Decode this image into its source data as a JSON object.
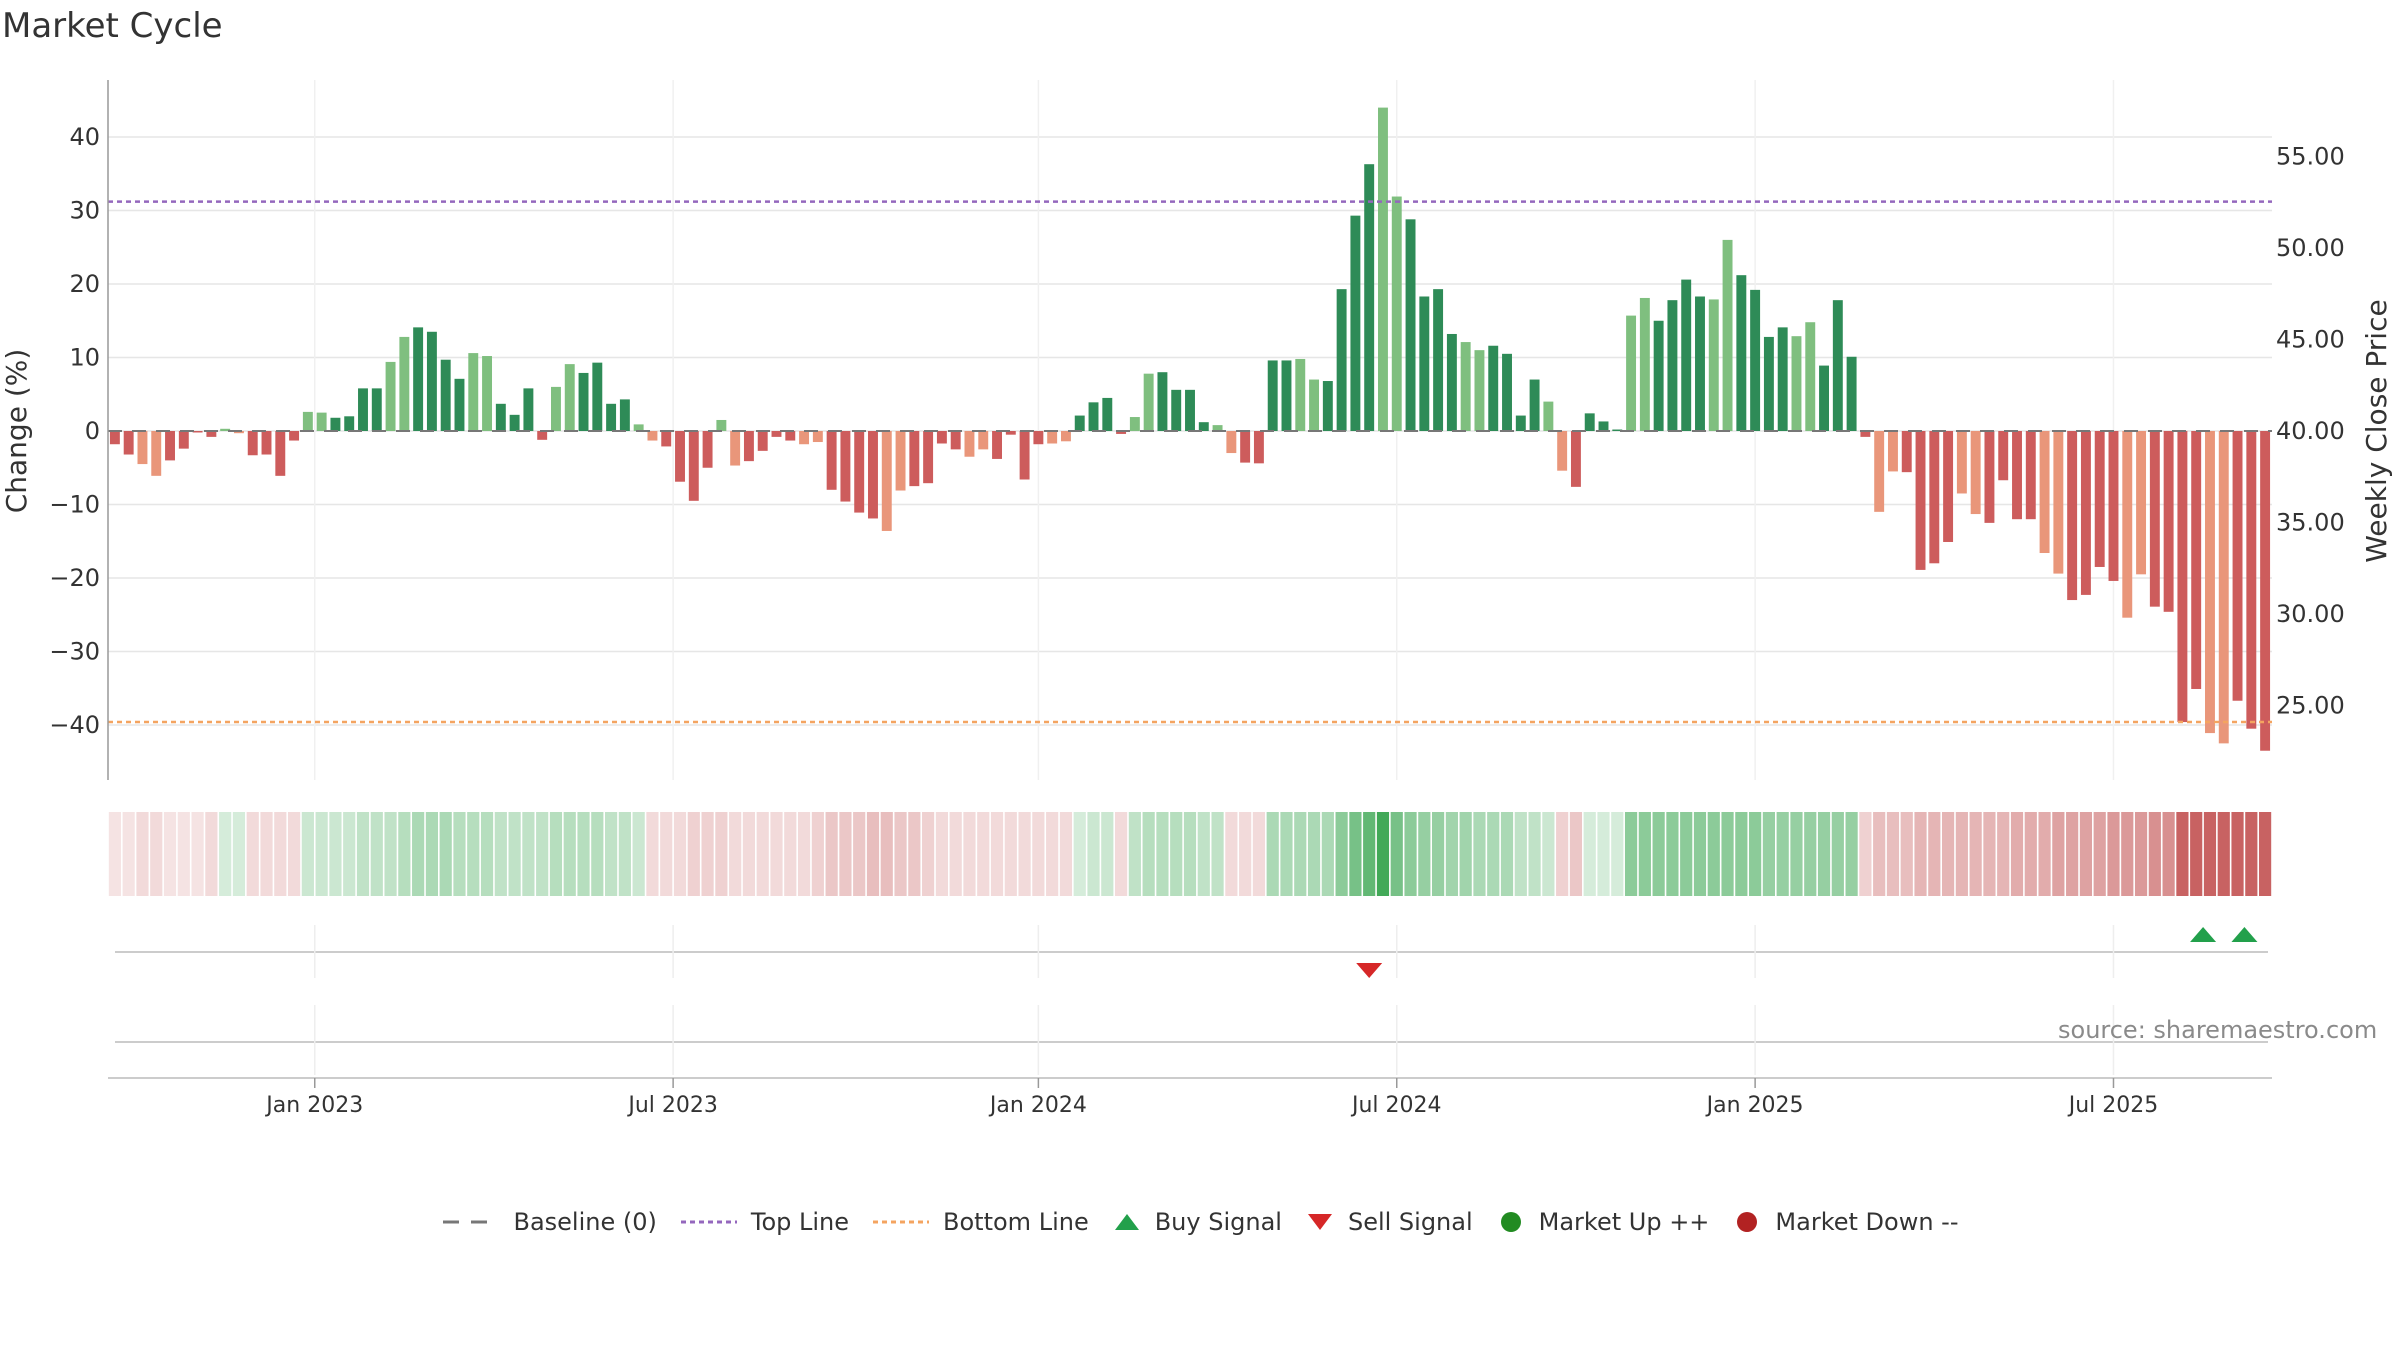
{
  "title": "Market Cycle",
  "source_label": "source: sharemaestro.com",
  "colors": {
    "up_dark": "#2e8b57",
    "up_light": "#7fbf7f",
    "down_dark": "#cd5c5c",
    "down_light": "#e9967a",
    "top_line": "#9467bd",
    "bottom_line": "#f4a460",
    "buy": "#22a04b",
    "sell": "#d62728",
    "market_up": "#228b22",
    "market_down": "#b22222",
    "baseline": "#777777"
  },
  "legend": [
    {
      "key": "baseline",
      "label": "Baseline (0)",
      "symbol": "dash",
      "color": "#777777"
    },
    {
      "key": "top",
      "label": "Top Line",
      "symbol": "dot",
      "color": "#9467bd"
    },
    {
      "key": "bottom",
      "label": "Bottom Line",
      "symbol": "dot",
      "color": "#f4a460"
    },
    {
      "key": "buy",
      "label": "Buy Signal",
      "symbol": "tri-up",
      "color": "#22a04b"
    },
    {
      "key": "sell",
      "label": "Sell Signal",
      "symbol": "tri-down",
      "color": "#d62728"
    },
    {
      "key": "mup",
      "label": "Market Up ++",
      "symbol": "circle",
      "color": "#228b22"
    },
    {
      "key": "mdown",
      "label": "Market Down --",
      "symbol": "circle",
      "color": "#b22222"
    }
  ],
  "chart_data": {
    "type": "bar",
    "title": "Market Cycle",
    "ylabel": "Change (%)",
    "y2label": "Weekly Close Price",
    "ylim": [
      -48,
      48
    ],
    "y_ticks": [
      40,
      30,
      20,
      10,
      0,
      -10,
      -20,
      -30,
      -40
    ],
    "y_tick_labels": [
      "40",
      "30",
      "20",
      "10",
      "0",
      "−10",
      "−20",
      "−30",
      "−40"
    ],
    "y2lim": [
      21.3,
      59.9
    ],
    "y2_ticks": [
      55,
      50,
      45,
      40,
      35,
      30,
      25
    ],
    "y2_tick_labels": [
      "55.00",
      "50.00",
      "45.00",
      "40.00",
      "35.00",
      "30.00",
      "25.00"
    ],
    "x_tick_labels": [
      "Jan 2023",
      "Jul 2023",
      "Jan 2024",
      "Jul 2024",
      "Jan 2025",
      "Jul 2025"
    ],
    "x_tick_weeks": [
      15,
      41,
      67.5,
      93.5,
      119.5,
      145.5
    ],
    "top_line": 31.2,
    "bottom_line": -39.6,
    "values": [
      -1.8,
      -3.2,
      -4.5,
      -6.1,
      -4.0,
      -2.4,
      -0.2,
      -0.8,
      0.3,
      -0.3,
      -3.3,
      -3.2,
      -6.1,
      -1.3,
      2.6,
      2.5,
      1.8,
      2.0,
      5.8,
      5.8,
      9.4,
      12.8,
      14.1,
      13.5,
      9.7,
      7.1,
      10.6,
      10.2,
      3.7,
      2.2,
      5.8,
      -1.2,
      6.0,
      9.1,
      7.9,
      9.3,
      3.7,
      4.3,
      0.9,
      -1.3,
      -2.1,
      -6.9,
      -9.5,
      -5.0,
      1.5,
      -4.7,
      -4.1,
      -2.7,
      -0.8,
      -1.3,
      -1.8,
      -1.5,
      -8.0,
      -9.6,
      -11.1,
      -11.9,
      -13.6,
      -8.1,
      -7.5,
      -7.1,
      -1.7,
      -2.5,
      -3.5,
      -2.5,
      -3.8,
      -0.5,
      -6.6,
      -1.8,
      -1.7,
      -1.4,
      2.1,
      3.9,
      4.5,
      -0.4,
      1.9,
      7.8,
      8.0,
      5.6,
      5.6,
      1.2,
      0.8,
      -3.0,
      -4.3,
      -4.4,
      9.6,
      9.6,
      9.8,
      7.0,
      6.8,
      19.3,
      29.3,
      36.3,
      44.0,
      31.9,
      28.8,
      18.3,
      19.3,
      13.2,
      12.1,
      11.0,
      11.6,
      10.5,
      2.1,
      7.0,
      4.0,
      -5.4,
      -7.6,
      2.4,
      1.3,
      0.2,
      15.7,
      18.1,
      15.0,
      17.8,
      20.6,
      18.3,
      17.9,
      26.0,
      21.2,
      19.2,
      12.8,
      14.1,
      12.9,
      14.8,
      8.9,
      17.8,
      10.1,
      -0.8,
      -11.0,
      -5.5,
      -5.6,
      -18.9,
      -18.0,
      -15.1,
      -8.5,
      -11.3,
      -12.5,
      -6.7,
      -12.0,
      -12.0,
      -16.6,
      -19.4,
      -23.0,
      -22.3,
      -18.5,
      -20.4,
      -25.4,
      -19.5,
      -23.9,
      -24.6,
      -39.6,
      -35.1,
      -41.1,
      -42.5,
      -36.7,
      -40.5,
      -43.5
    ],
    "heat_strip": [
      -0.15,
      -0.15,
      -0.2,
      -0.2,
      -0.15,
      -0.15,
      -0.15,
      -0.2,
      0.2,
      0.2,
      -0.2,
      -0.2,
      -0.2,
      -0.2,
      0.25,
      0.25,
      0.25,
      0.25,
      0.3,
      0.3,
      0.3,
      0.35,
      0.4,
      0.4,
      0.4,
      0.35,
      0.35,
      0.35,
      0.3,
      0.3,
      0.3,
      0.3,
      0.35,
      0.35,
      0.35,
      0.35,
      0.3,
      0.3,
      0.25,
      -0.2,
      -0.2,
      -0.2,
      -0.25,
      -0.25,
      -0.25,
      -0.2,
      -0.2,
      -0.2,
      -0.2,
      -0.2,
      -0.2,
      -0.25,
      -0.3,
      -0.3,
      -0.3,
      -0.35,
      -0.35,
      -0.3,
      -0.3,
      -0.25,
      -0.2,
      -0.2,
      -0.2,
      -0.2,
      -0.2,
      -0.2,
      -0.2,
      -0.2,
      -0.2,
      -0.2,
      0.2,
      0.25,
      0.25,
      -0.2,
      0.3,
      0.35,
      0.35,
      0.35,
      0.35,
      0.3,
      0.3,
      -0.2,
      -0.2,
      -0.2,
      0.4,
      0.4,
      0.4,
      0.4,
      0.4,
      0.55,
      0.65,
      0.75,
      0.9,
      0.65,
      0.55,
      0.5,
      0.5,
      0.45,
      0.45,
      0.4,
      0.4,
      0.4,
      0.3,
      0.3,
      0.25,
      -0.25,
      -0.3,
      0.2,
      0.2,
      0.2,
      0.55,
      0.55,
      0.55,
      0.55,
      0.55,
      0.55,
      0.55,
      0.55,
      0.55,
      0.55,
      0.5,
      0.5,
      0.5,
      0.5,
      0.5,
      0.5,
      0.5,
      -0.25,
      -0.35,
      -0.35,
      -0.35,
      -0.4,
      -0.4,
      -0.4,
      -0.4,
      -0.4,
      -0.4,
      -0.4,
      -0.45,
      -0.45,
      -0.45,
      -0.5,
      -0.5,
      -0.5,
      -0.5,
      -0.55,
      -0.55,
      -0.55,
      -0.6,
      -0.6,
      -0.85,
      -0.85,
      -0.85,
      -0.85,
      -0.85,
      -0.85,
      -0.85
    ],
    "buy_signals": [
      152,
      155
    ],
    "sell_signals": [
      91.5
    ],
    "legend_position": "bottom",
    "grid": true
  }
}
